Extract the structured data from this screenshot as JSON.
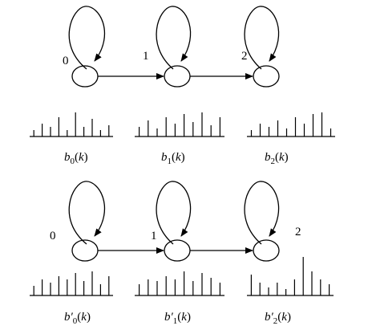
{
  "top_chain": {
    "states": [
      {
        "label": "0"
      },
      {
        "label": "1"
      },
      {
        "label": "2"
      }
    ],
    "distributions": [
      {
        "heights": [
          8,
          16,
          12,
          24,
          8,
          30,
          12,
          22,
          8,
          14
        ],
        "caption": {
          "var": "b",
          "prime": "",
          "sub": "0",
          "lp": "(",
          "arg": "k",
          "rp": ")"
        }
      },
      {
        "heights": [
          12,
          20,
          10,
          24,
          16,
          28,
          18,
          30,
          14,
          24
        ],
        "caption": {
          "var": "b",
          "prime": "",
          "sub": "1",
          "lp": "(",
          "arg": "k",
          "rp": ")"
        }
      },
      {
        "heights": [
          8,
          16,
          12,
          20,
          10,
          24,
          16,
          28,
          30,
          10
        ],
        "caption": {
          "var": "b",
          "prime": "",
          "sub": "2",
          "lp": "(",
          "arg": "k",
          "rp": ")"
        }
      }
    ]
  },
  "bottom_chain": {
    "states": [
      {
        "label": "0"
      },
      {
        "label": "1"
      },
      {
        "label": "2"
      }
    ],
    "distributions": [
      {
        "heights": [
          12,
          20,
          16,
          24,
          20,
          28,
          18,
          30,
          14,
          24
        ],
        "caption": {
          "var": "b",
          "prime": "′",
          "sub": "0",
          "lp": "(",
          "arg": "k",
          "rp": ")"
        }
      },
      {
        "heights": [
          14,
          20,
          18,
          24,
          20,
          30,
          18,
          28,
          22,
          16
        ],
        "caption": {
          "var": "b",
          "prime": "′",
          "sub": "1",
          "lp": "(",
          "arg": "k",
          "rp": ")"
        }
      },
      {
        "heights": [
          26,
          16,
          10,
          16,
          8,
          20,
          48,
          30,
          20,
          14
        ],
        "caption": {
          "var": "b",
          "prime": "′",
          "sub": "2",
          "lp": "(",
          "arg": "k",
          "rp": ")"
        }
      }
    ]
  }
}
